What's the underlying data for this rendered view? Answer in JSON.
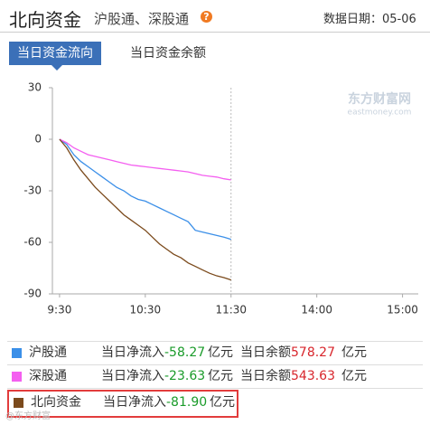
{
  "header": {
    "title": "北向资金",
    "subtitle": "沪股通、深股通",
    "help": "?",
    "date_label": "数据日期：",
    "date": "05-06"
  },
  "tabs": [
    "当日资金流向",
    "当日资金余额"
  ],
  "watermark": {
    "brand": "东方财富网",
    "site": "eastmoney.com",
    "footer": "@东方财富"
  },
  "chart_data": {
    "type": "line",
    "x": [
      0,
      5,
      10,
      15,
      20,
      25,
      30,
      35,
      40,
      45,
      50,
      55,
      60,
      65,
      70,
      75,
      80,
      85,
      90,
      95,
      100,
      105,
      110,
      115,
      120
    ],
    "xlim": [
      -5,
      251
    ],
    "xticks": [
      {
        "value": 0,
        "label": "9:30"
      },
      {
        "value": 60,
        "label": "10:30"
      },
      {
        "value": 120,
        "label": "11:30"
      },
      {
        "value": 180,
        "label": "14:00"
      },
      {
        "value": 240,
        "label": "15:00"
      }
    ],
    "ylim": [
      -90,
      30
    ],
    "yticks": [
      30,
      0,
      -30,
      -60,
      -90
    ],
    "grid": false,
    "series": [
      {
        "name": "沪股通",
        "color": "#3b8fe8",
        "values": [
          0,
          -3,
          -9,
          -13,
          -16,
          -19,
          -22,
          -25,
          -28,
          -30,
          -33,
          -35,
          -36,
          -38,
          -40,
          -42,
          -44,
          -46,
          -48,
          -53,
          -54,
          -55,
          -56,
          -57,
          -58.27
        ]
      },
      {
        "name": "深股通",
        "color": "#f45ff0",
        "values": [
          0,
          -2,
          -5,
          -7,
          -9,
          -10,
          -11,
          -12,
          -13,
          -14,
          -15,
          -15.5,
          -16,
          -16.5,
          -17,
          -17.5,
          -18,
          -18.5,
          -19,
          -20,
          -21,
          -21.5,
          -22,
          -23,
          -23.63
        ]
      },
      {
        "name": "北向资金",
        "color": "#7b4a1c",
        "values": [
          0,
          -5,
          -12,
          -18,
          -23,
          -28,
          -32,
          -36,
          -40,
          -44,
          -47,
          -50,
          -53,
          -57,
          -61,
          -64,
          -67,
          -69,
          -72,
          -74,
          -76,
          -78,
          -79.5,
          -80.5,
          -81.9
        ]
      }
    ]
  },
  "summary": {
    "net_label": "当日净流入",
    "balance_label": "当日余额",
    "unit": "亿元",
    "rows": [
      {
        "net": -58.27,
        "balance": 578.27
      },
      {
        "net": -23.63,
        "balance": 543.63
      },
      {
        "net": -81.9,
        "net_label": "-81.90"
      }
    ]
  }
}
